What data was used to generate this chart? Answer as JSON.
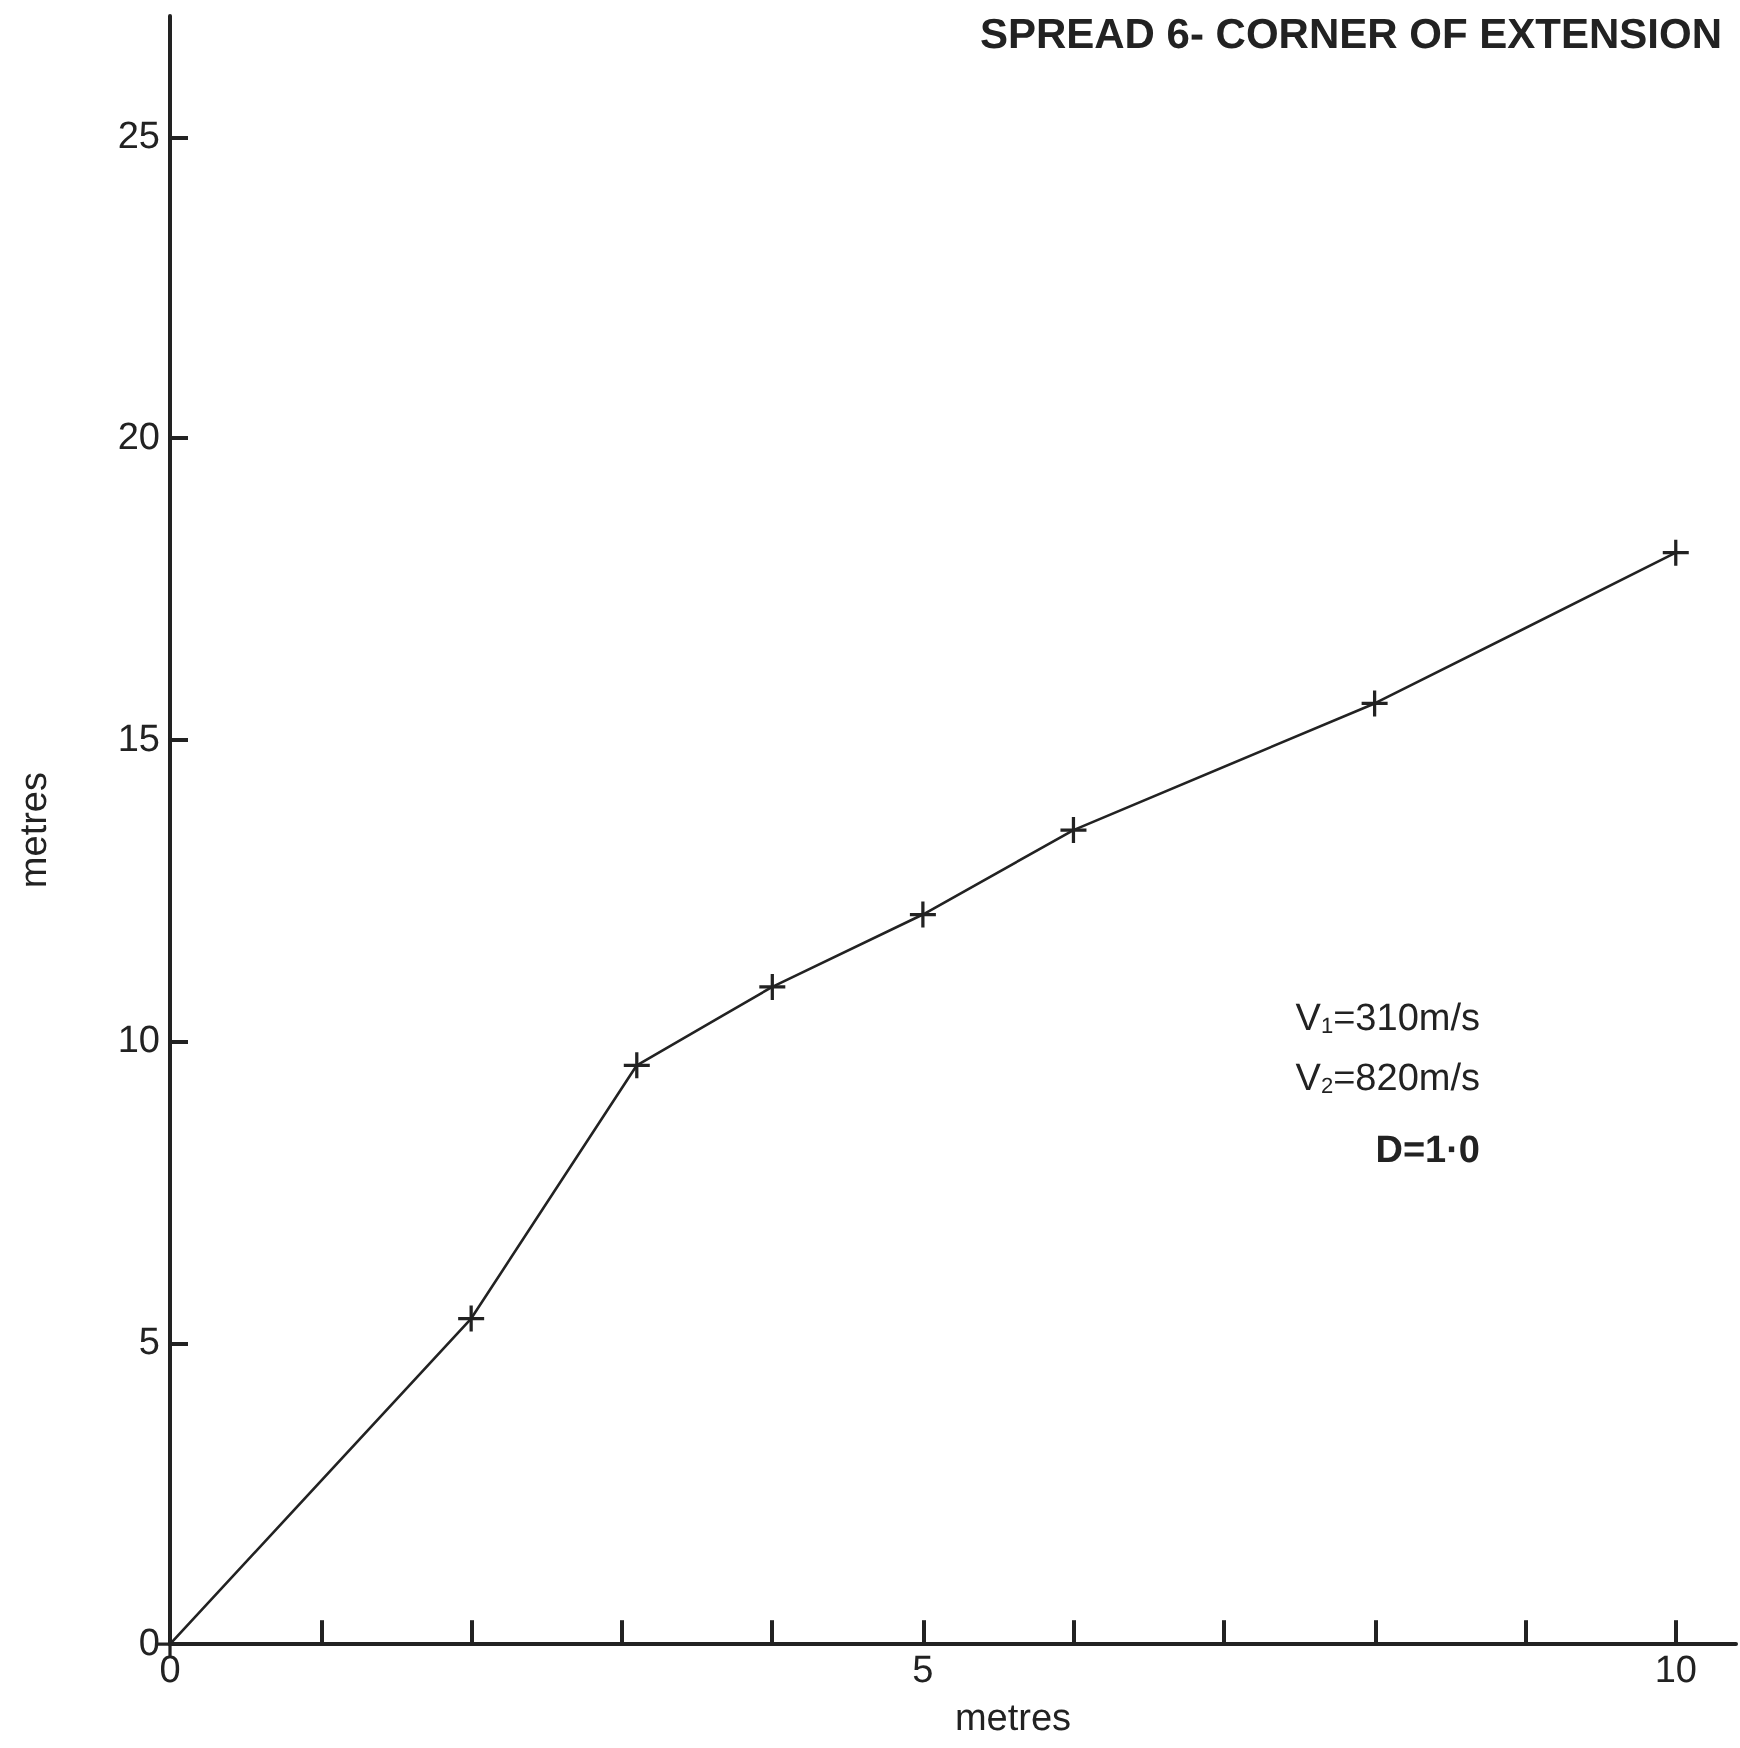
{
  "chart_data": {
    "type": "line",
    "title": "SPREAD 6- CORNER OF EXTENSION",
    "xlabel": "metres",
    "ylabel": "metres",
    "x": [
      0,
      2,
      3.1,
      4,
      5,
      6,
      8,
      10
    ],
    "series": [
      {
        "color": "#222222",
        "values": [
          0,
          5.4,
          9.6,
          10.9,
          12.1,
          13.5,
          15.6,
          18.1
        ]
      }
    ],
    "xlim": [
      0,
      10.4
    ],
    "ylim": [
      0,
      27
    ],
    "xticks": [
      0,
      {
        "value": 1,
        "label": null
      },
      {
        "value": 2,
        "label": null
      },
      {
        "value": 3,
        "label": null
      },
      {
        "value": 4,
        "label": null
      },
      5,
      {
        "value": 6,
        "label": null
      },
      {
        "value": 7,
        "label": null
      },
      {
        "value": 8,
        "label": null
      },
      {
        "value": 9,
        "label": null
      },
      10
    ],
    "yticks": [
      0,
      5,
      10,
      15,
      20,
      25
    ],
    "annotations": [
      "V$_{1}$=310m/s",
      "V$_{2}$=820m/s",
      "D=1·0"
    ],
    "grid": false,
    "marker": "cross",
    "line_style": "solid"
  }
}
